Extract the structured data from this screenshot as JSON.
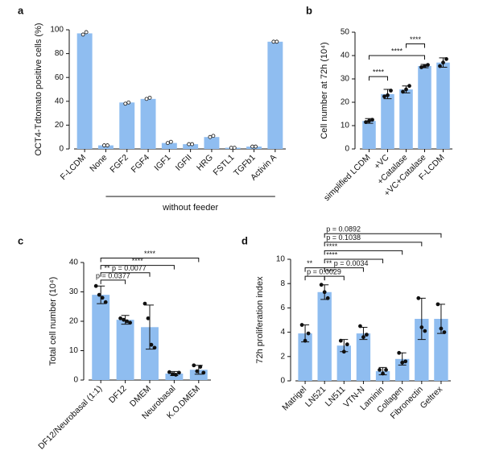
{
  "chart_data": [
    {
      "type": "bar",
      "panel": "a",
      "ylabel": "OCT4-Tdtomato positive cells (%)",
      "group_label": "without feeder",
      "categories": [
        "F-LCDM",
        "None",
        "FGF2",
        "FGF4",
        "IGF1",
        "IGFII",
        "HRG",
        "FSTL1",
        "TGFb1",
        "Activin A"
      ],
      "values": [
        97,
        3,
        39,
        42,
        5,
        4,
        10,
        1,
        2,
        90
      ],
      "points": [
        [
          96,
          98
        ],
        [
          3,
          3
        ],
        [
          38,
          39
        ],
        [
          42,
          43
        ],
        [
          5,
          6
        ],
        [
          4,
          4
        ],
        [
          10,
          11
        ],
        [
          1,
          1
        ],
        [
          2,
          2
        ],
        [
          90,
          90
        ]
      ],
      "color": "#8fbdf0",
      "ylim": [
        0,
        100
      ],
      "yticks": [
        0,
        20,
        40,
        60,
        80,
        100
      ]
    },
    {
      "type": "bar",
      "panel": "b",
      "ylabel": "Cell number at 72h (10⁴)",
      "categories": [
        "simplified LCDM",
        "+VC",
        "+Catalase",
        "+VC+Catalase",
        "F-LCDM"
      ],
      "values": [
        12,
        23.5,
        25.5,
        35.5,
        37
      ],
      "errors": [
        1,
        2,
        1.5,
        0.7,
        2
      ],
      "points": [
        [
          11.5,
          12,
          12.5
        ],
        [
          22.5,
          23,
          25
        ],
        [
          24.5,
          25.5,
          27
        ],
        [
          35,
          35.5,
          36
        ],
        [
          35.5,
          37,
          38.5
        ]
      ],
      "annotations": [
        "****",
        "****",
        "****"
      ],
      "color": "#8fbdf0",
      "ylim": [
        0,
        50
      ],
      "yticks": [
        0,
        10,
        20,
        30,
        40,
        50
      ]
    },
    {
      "type": "bar",
      "panel": "c",
      "ylabel": "Total cell number (10⁴)",
      "categories": [
        "DF12/Neurobasal (1:1)",
        "DF12",
        "DMEM",
        "Neurobasal",
        "K.O.DMEM"
      ],
      "values": [
        29,
        20.5,
        18,
        2.2,
        3.5
      ],
      "errors": [
        3,
        1.5,
        7.5,
        0.7,
        1.5
      ],
      "points": [
        [
          32,
          29,
          28,
          26.5
        ],
        [
          21,
          20.5,
          20,
          19.5
        ],
        [
          26,
          21,
          12,
          11
        ],
        [
          2.7,
          2,
          1.8,
          2.5
        ],
        [
          5,
          3,
          4.5,
          2.5
        ]
      ],
      "annotations": [
        "p = 0.0377",
        "** p = 0.0077",
        "****",
        "****"
      ],
      "color": "#8fbdf0",
      "ylim": [
        0,
        40
      ],
      "yticks": [
        0,
        10,
        20,
        30,
        40
      ]
    },
    {
      "type": "bar",
      "panel": "d",
      "ylabel": "72h proliferation index",
      "categories": [
        "Matrigel",
        "LN521",
        "LN511",
        "VTN-N",
        "Laminin",
        "Collagen",
        "Fibronectin",
        "Geltrex"
      ],
      "values": [
        3.9,
        7.3,
        2.9,
        3.9,
        0.8,
        1.8,
        5.1,
        5.1
      ],
      "errors": [
        0.7,
        0.6,
        0.5,
        0.5,
        0.3,
        0.5,
        1.7,
        1.2
      ],
      "points": [
        [
          4.6,
          3.3,
          3.9
        ],
        [
          7.9,
          7.3,
          6.8
        ],
        [
          3.3,
          2.4,
          3
        ],
        [
          4.5,
          3.6,
          3.8
        ],
        [
          0.9,
          0.6,
          0.9
        ],
        [
          2.3,
          1.5,
          1.6
        ],
        [
          6.8,
          4.4,
          4.1
        ],
        [
          6.3,
          4.3,
          4
        ]
      ],
      "annotations": [
        "p = 0.0029",
        "**",
        "***",
        "** p = 0.0034",
        "****",
        "****",
        "p = 0.1038",
        "p = 0.0892"
      ],
      "color": "#8fbdf0",
      "ylim": [
        0,
        10
      ],
      "yticks": [
        0,
        2,
        4,
        6,
        8,
        10
      ]
    }
  ]
}
